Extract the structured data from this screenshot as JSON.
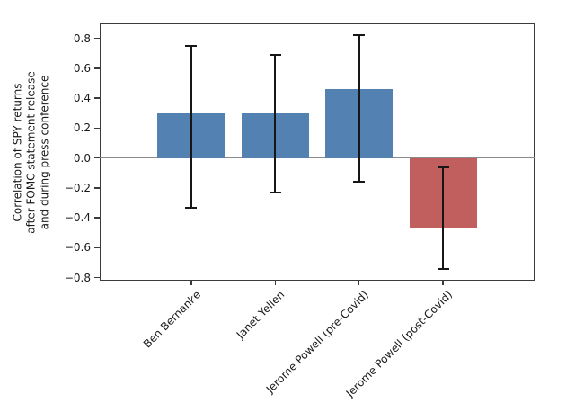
{
  "chart_data": {
    "type": "bar",
    "categories": [
      "Ben Bernanke",
      "Janet Yellen",
      "Jerome Powell (pre-Covid)",
      "Jerome Powell (post-Covid)"
    ],
    "values": [
      0.3,
      0.3,
      0.46,
      -0.47
    ],
    "error_low": [
      -0.33,
      -0.23,
      -0.16,
      -0.74
    ],
    "error_high": [
      0.75,
      0.69,
      0.82,
      -0.06
    ],
    "bar_colors": [
      "#5381b1",
      "#5381b1",
      "#5381b1",
      "#c05f5e"
    ],
    "positive_bar_color": "#5381b1",
    "negative_bar_color": "#c05f5e",
    "error_bar_color": "#161616",
    "title": "",
    "xlabel": "",
    "ylabel_lines": [
      "Correlation of SPY returns",
      "after FOMC statement release",
      "and during press conference"
    ],
    "yticks": [
      0.8,
      0.6,
      0.4,
      0.2,
      0.0,
      -0.2,
      -0.4,
      -0.6,
      -0.8
    ],
    "ylim": [
      -0.82,
      0.9
    ],
    "grid": false,
    "legend": null,
    "zero_line": true
  }
}
